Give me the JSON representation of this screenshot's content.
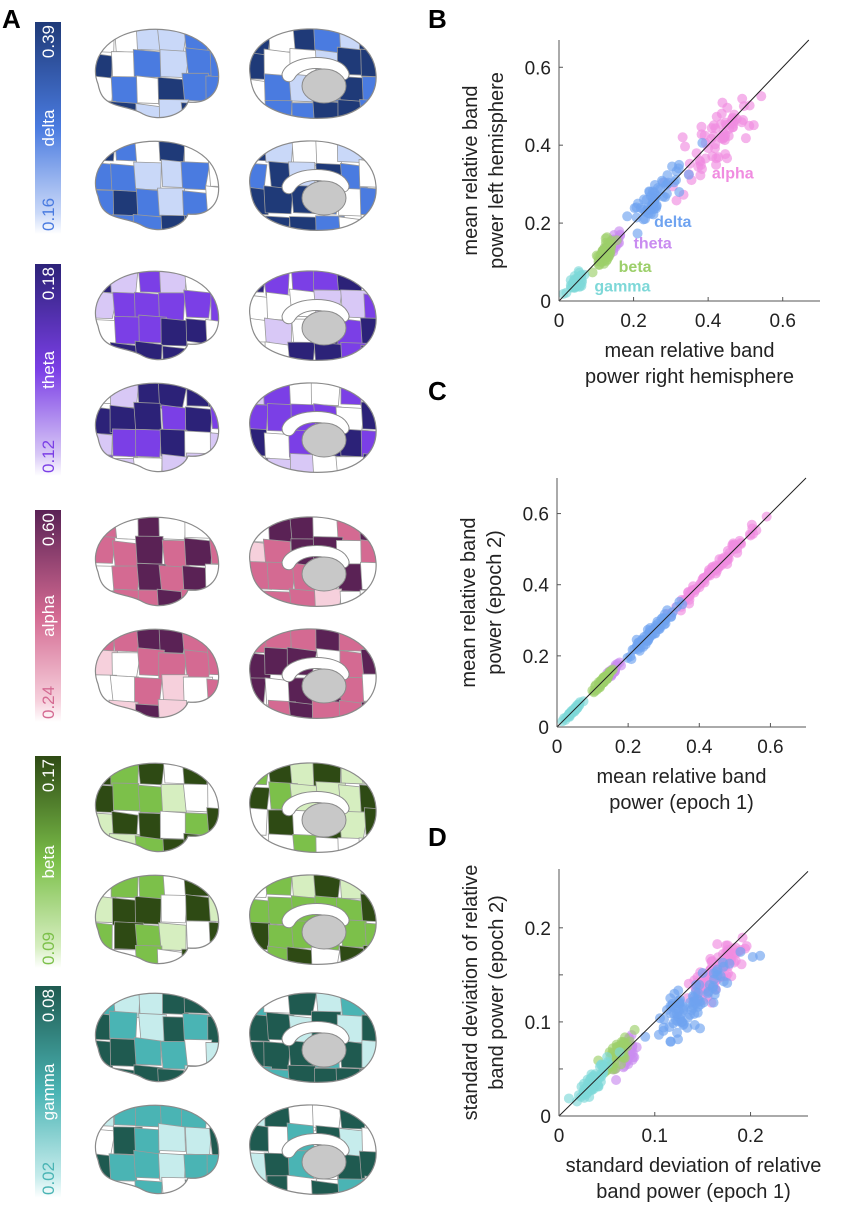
{
  "panels": {
    "A": {
      "letter": "A"
    },
    "B": {
      "letter": "B"
    },
    "C": {
      "letter": "C"
    },
    "D": {
      "letter": "D"
    }
  },
  "bands": [
    {
      "name": "delta",
      "max": "0.39",
      "min": "0.16",
      "dark": "#1f3a78",
      "mid": "#4a7be0",
      "light": "#c9d8f8",
      "plot_color": "#6fa3f0"
    },
    {
      "name": "theta",
      "max": "0.18",
      "min": "0.12",
      "dark": "#2c2278",
      "mid": "#7b3fe6",
      "light": "#d8c8f6",
      "plot_color": "#c98cf0"
    },
    {
      "name": "alpha",
      "max": "0.60",
      "min": "0.24",
      "dark": "#5a2255",
      "mid": "#d46a92",
      "light": "#f6d0dc",
      "plot_color": "#f08ce0"
    },
    {
      "name": "beta",
      "max": "0.17",
      "min": "0.09",
      "dark": "#2e4a14",
      "mid": "#7cc04a",
      "light": "#d6eec0",
      "plot_color": "#9ccf6a"
    },
    {
      "name": "gamma",
      "max": "0.08",
      "min": "0.02",
      "dark": "#1f5a50",
      "mid": "#4ab4b4",
      "light": "#c6ecec",
      "plot_color": "#7ed8d8"
    }
  ],
  "chart_data": [
    {
      "id": "B",
      "type": "scatter",
      "title": "",
      "xlabel": [
        "mean relative band",
        "power right hemisphere"
      ],
      "ylabel": [
        "mean relative band",
        "power left hemisphere"
      ],
      "xlim": [
        0,
        0.7
      ],
      "ylim": [
        0,
        0.67
      ],
      "xticks": [
        "0",
        "0.2",
        "0.4",
        "0.6"
      ],
      "yticks": [
        "0",
        "0.2",
        "0.4",
        "0.6"
      ],
      "xtick_values": [
        0,
        0.2,
        0.4,
        0.6
      ],
      "ytick_values": [
        0,
        0.2,
        0.4,
        0.6
      ],
      "identity_line": true,
      "annotations": [
        {
          "text": "alpha",
          "x": 0.41,
          "y": 0.315,
          "band": "alpha"
        },
        {
          "text": "delta",
          "x": 0.255,
          "y": 0.19,
          "band": "delta"
        },
        {
          "text": "theta",
          "x": 0.2,
          "y": 0.135,
          "band": "theta"
        },
        {
          "text": "beta",
          "x": 0.16,
          "y": 0.075,
          "band": "beta"
        },
        {
          "text": "gamma",
          "x": 0.095,
          "y": 0.025,
          "band": "gamma"
        }
      ],
      "series": [
        {
          "name": "alpha",
          "center": [
            0.43,
            0.42
          ],
          "spread": [
            0.09,
            0.08
          ],
          "noise": 0.035,
          "n": 70,
          "xrange": [
            0.25,
            0.6
          ]
        },
        {
          "name": "delta",
          "center": [
            0.26,
            0.26
          ],
          "spread": [
            0.06,
            0.06
          ],
          "noise": 0.025,
          "n": 60,
          "xrange": [
            0.16,
            0.39
          ]
        },
        {
          "name": "theta",
          "center": [
            0.14,
            0.14
          ],
          "spread": [
            0.02,
            0.02
          ],
          "noise": 0.01,
          "n": 40,
          "xrange": [
            0.1,
            0.18
          ]
        },
        {
          "name": "beta",
          "center": [
            0.125,
            0.125
          ],
          "spread": [
            0.02,
            0.02
          ],
          "noise": 0.012,
          "n": 60,
          "xrange": [
            0.09,
            0.17
          ]
        },
        {
          "name": "gamma",
          "center": [
            0.045,
            0.045
          ],
          "spread": [
            0.02,
            0.02
          ],
          "noise": 0.01,
          "n": 40,
          "xrange": [
            0.01,
            0.08
          ]
        }
      ]
    },
    {
      "id": "C",
      "type": "scatter",
      "title": "",
      "xlabel": [
        "mean relative band",
        "power (epoch 1)"
      ],
      "ylabel": [
        "mean relative band",
        "power (epoch 2)"
      ],
      "xlim": [
        0,
        0.7
      ],
      "ylim": [
        0,
        0.7
      ],
      "xticks": [
        "0",
        "0.2",
        "0.4",
        "0.6"
      ],
      "yticks": [
        "0",
        "0.2",
        "0.4",
        "0.6"
      ],
      "xtick_values": [
        0,
        0.2,
        0.4,
        0.6
      ],
      "ytick_values": [
        0,
        0.2,
        0.4,
        0.6
      ],
      "identity_line": true,
      "annotations": [],
      "series": [
        {
          "name": "alpha",
          "center": [
            0.43,
            0.43
          ],
          "spread": [
            0.09,
            0.09
          ],
          "noise": 0.008,
          "n": 90,
          "xrange": [
            0.24,
            0.61
          ]
        },
        {
          "name": "delta",
          "center": [
            0.27,
            0.27
          ],
          "spread": [
            0.06,
            0.06
          ],
          "noise": 0.01,
          "n": 70,
          "xrange": [
            0.16,
            0.39
          ]
        },
        {
          "name": "theta",
          "center": [
            0.15,
            0.15
          ],
          "spread": [
            0.02,
            0.02
          ],
          "noise": 0.005,
          "n": 40,
          "xrange": [
            0.12,
            0.18
          ]
        },
        {
          "name": "beta",
          "center": [
            0.13,
            0.13
          ],
          "spread": [
            0.02,
            0.02
          ],
          "noise": 0.005,
          "n": 60,
          "xrange": [
            0.09,
            0.17
          ]
        },
        {
          "name": "gamma",
          "center": [
            0.045,
            0.045
          ],
          "spread": [
            0.02,
            0.02
          ],
          "noise": 0.004,
          "n": 40,
          "xrange": [
            0.01,
            0.08
          ]
        }
      ]
    },
    {
      "id": "D",
      "type": "scatter",
      "title": "",
      "xlabel": [
        "standard deviation of relative",
        "band power (epoch 1)"
      ],
      "ylabel": [
        "standard deviation of relative",
        "band power (epoch 2)"
      ],
      "xlim": [
        0,
        0.26
      ],
      "ylim": [
        0,
        0.2625
      ],
      "xticks": [
        "0",
        "0.1",
        "0.2"
      ],
      "yticks": [
        "0",
        "0.1",
        "0.2"
      ],
      "xtick_values": [
        0,
        0.1,
        0.2
      ],
      "ytick_values": [
        0,
        0.1,
        0.2
      ],
      "minor_yticks": [
        0.05,
        0.15
      ],
      "identity_line": true,
      "annotations": [],
      "series": [
        {
          "name": "alpha",
          "center": [
            0.165,
            0.155
          ],
          "spread": [
            0.025,
            0.025
          ],
          "noise": 0.01,
          "n": 90,
          "xrange": [
            0.06,
            0.23
          ]
        },
        {
          "name": "delta",
          "center": [
            0.14,
            0.12
          ],
          "spread": [
            0.035,
            0.03
          ],
          "noise": 0.012,
          "n": 90,
          "xrange": [
            0.09,
            0.21
          ]
        },
        {
          "name": "theta",
          "center": [
            0.07,
            0.065
          ],
          "spread": [
            0.01,
            0.01
          ],
          "noise": 0.008,
          "n": 40,
          "xrange": [
            0.05,
            0.09
          ]
        },
        {
          "name": "beta",
          "center": [
            0.06,
            0.065
          ],
          "spread": [
            0.012,
            0.012
          ],
          "noise": 0.006,
          "n": 50,
          "xrange": [
            0.04,
            0.085
          ]
        },
        {
          "name": "gamma",
          "center": [
            0.035,
            0.035
          ],
          "spread": [
            0.015,
            0.015
          ],
          "noise": 0.006,
          "n": 80,
          "xrange": [
            0.008,
            0.07
          ]
        }
      ]
    }
  ]
}
